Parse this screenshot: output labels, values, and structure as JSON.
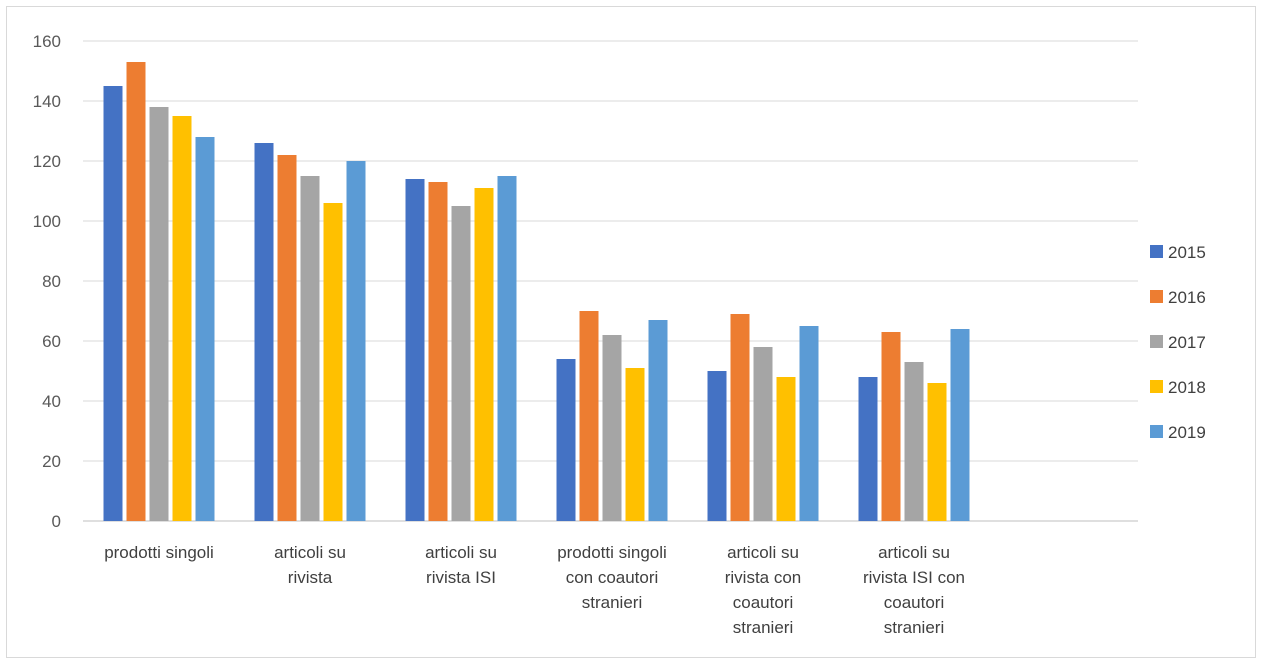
{
  "chart_data": {
    "type": "bar",
    "categories": [
      [
        "prodotti singoli"
      ],
      [
        "articoli su",
        "rivista"
      ],
      [
        "articoli su",
        "rivista ISI"
      ],
      [
        "prodotti singoli",
        "con coautori",
        "stranieri"
      ],
      [
        "articoli su",
        "rivista con",
        "coautori",
        "stranieri"
      ],
      [
        "articoli su",
        "rivista ISI con",
        "coautori",
        "stranieri"
      ]
    ],
    "series": [
      {
        "name": "2015",
        "color": "#4472C4",
        "values": [
          145,
          126,
          114,
          54,
          50,
          48
        ]
      },
      {
        "name": "2016",
        "color": "#ED7D31",
        "values": [
          153,
          122,
          113,
          70,
          69,
          63
        ]
      },
      {
        "name": "2017",
        "color": "#A5A5A5",
        "values": [
          138,
          115,
          105,
          62,
          58,
          53
        ]
      },
      {
        "name": "2018",
        "color": "#FFC000",
        "values": [
          135,
          106,
          111,
          51,
          48,
          46
        ]
      },
      {
        "name": "2019",
        "color": "#5B9BD5",
        "values": [
          128,
          120,
          115,
          67,
          65,
          64
        ]
      }
    ],
    "ylim": [
      0,
      160
    ],
    "yticks": [
      0,
      20,
      40,
      60,
      80,
      100,
      120,
      140,
      160
    ],
    "grid": true,
    "legend_position": "right"
  }
}
